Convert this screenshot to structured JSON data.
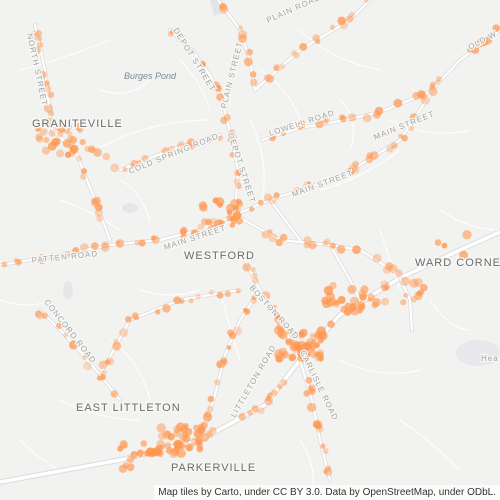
{
  "map": {
    "towns": [
      "GRANITEVILLE",
      "WESTFORD",
      "EAST LITTLETON",
      "PARKERVILLE",
      "WARD CORNER"
    ],
    "water": [
      "Burges Pond"
    ],
    "roads": [
      "NORTH STREET",
      "DEPOT STREET",
      "PLAIN ROAD",
      "PLAIN STREET",
      "COLD SPRING ROAD",
      "LOWELL ROAD",
      "MAIN STREET",
      "MAIN STREET",
      "DEPOT STREET",
      "PATTEN ROAD",
      "MAIN STREET",
      "CONCORD ROAD",
      "BOSTON ROAD",
      "LITTLETON ROAD",
      "CARLISLE ROAD",
      "OLD W",
      "Hea"
    ],
    "attribution": "Map tiles by Carto, under CC BY 3.0. Data by OpenStreetMap, under ODbL.",
    "colors": {
      "background": "#f2f2f0",
      "major_road": "#ffffff",
      "road_casing": "#dcdcdc",
      "heat_point": "#ff9650",
      "water": "#e2e6ea"
    }
  }
}
